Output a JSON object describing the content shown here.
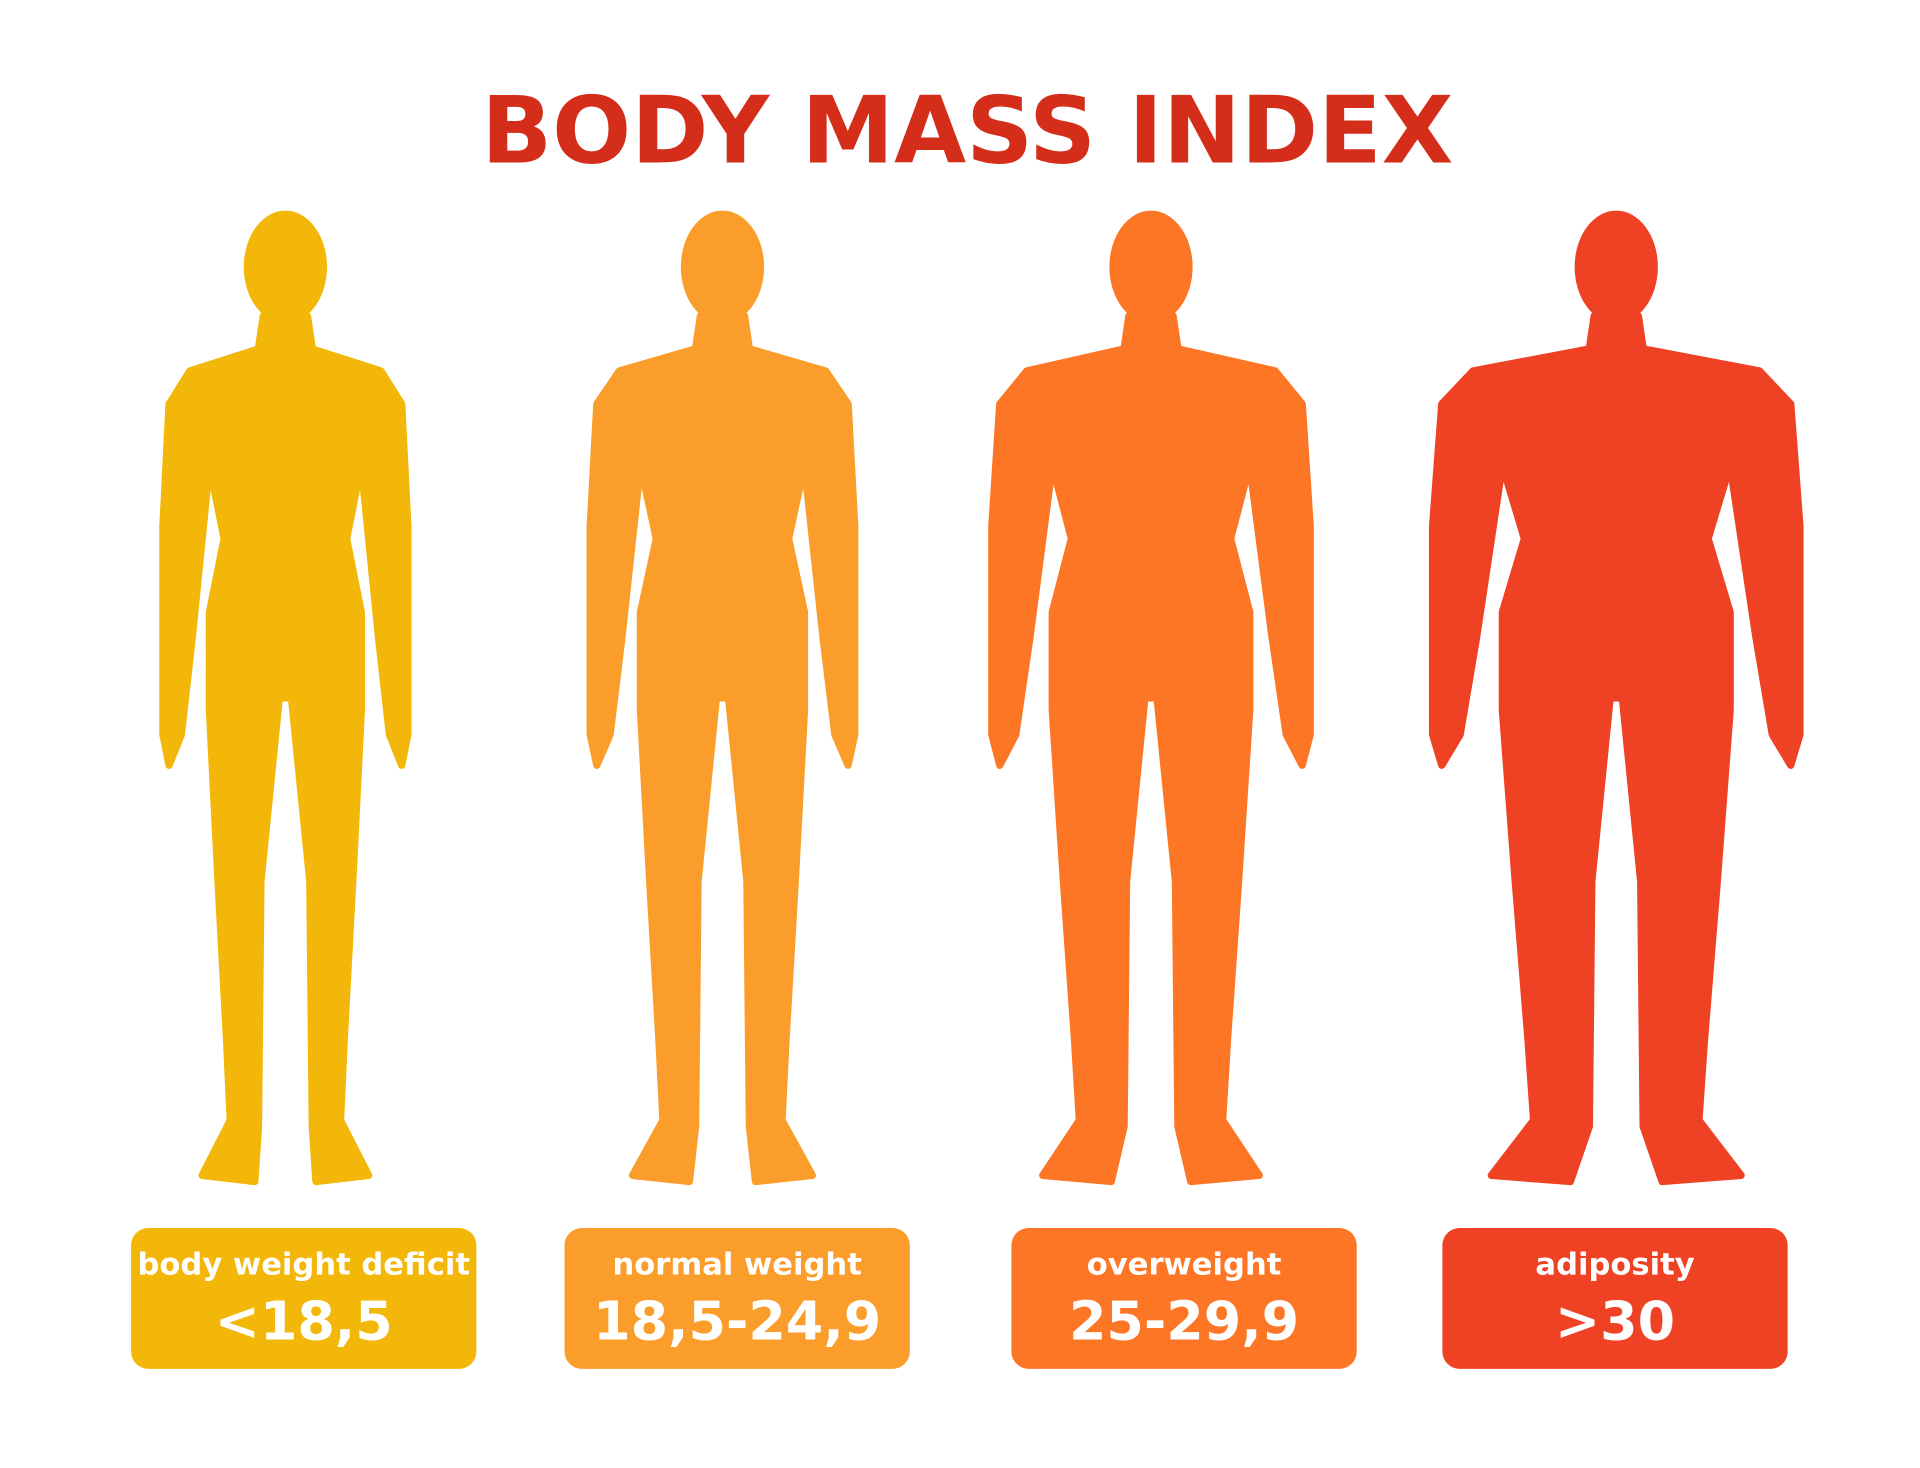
{
  "title": "BODY MASS INDEX",
  "categories": [
    {
      "label": "body weight deficit",
      "range": "<18,5"
    },
    {
      "label": "normal weight",
      "range": "18,5-24,9"
    },
    {
      "label": "overweight",
      "range": "25-29,9"
    },
    {
      "label": "adiposity",
      "range": ">30"
    }
  ]
}
